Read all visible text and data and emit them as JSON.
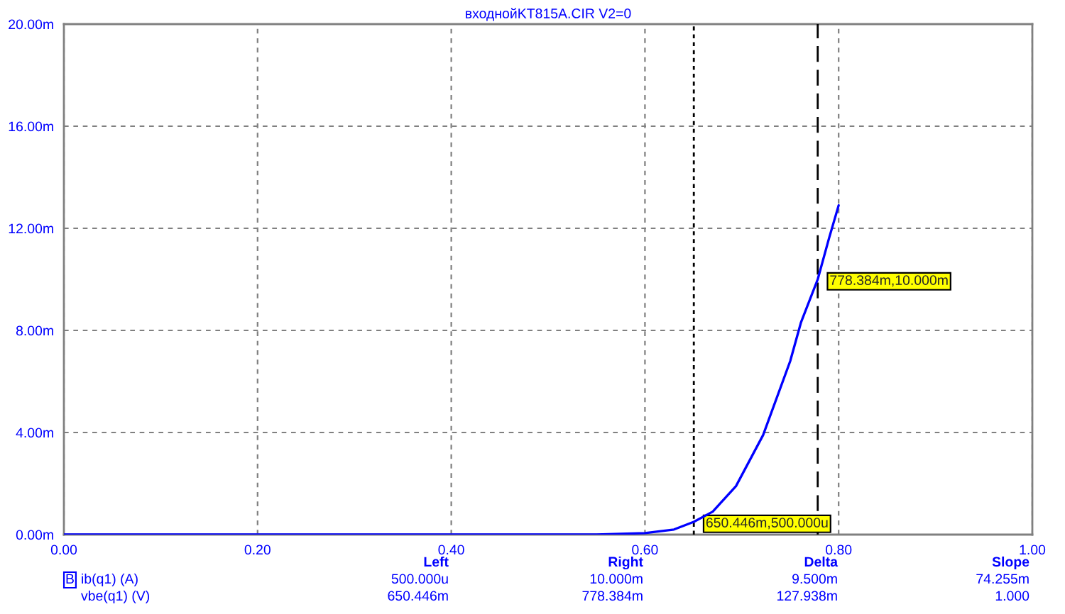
{
  "chart_data": {
    "type": "line",
    "title": "входнойKT815A.CIR V2=0",
    "xlabel": "vbe(q1) (V)",
    "x": [
      0,
      0.5,
      0.55,
      0.6,
      0.63,
      0.650446,
      0.67,
      0.694,
      0.722,
      0.75,
      0.761,
      0.778384,
      0.79,
      0.8
    ],
    "series": [
      {
        "name": "ib(q1) (A)",
        "color": "#0000ff",
        "values": [
          0,
          0,
          0,
          0.06,
          0.2,
          0.5,
          0.9,
          1.9,
          3.9,
          6.8,
          8.3,
          10,
          11.6,
          12.9
        ]
      }
    ],
    "xlim": [
      0,
      1
    ],
    "xticks": [
      {
        "value": 0,
        "label": "0.00"
      },
      {
        "value": 0.2,
        "label": "0.20"
      },
      {
        "value": 0.4,
        "label": "0.40"
      },
      {
        "value": 0.6,
        "label": "0.60"
      },
      {
        "value": 0.8,
        "label": "0.80"
      },
      {
        "value": 1,
        "label": "1.00"
      }
    ],
    "ylim": [
      0,
      20
    ],
    "yticks": [
      {
        "value": 0,
        "label": "0.00m"
      },
      {
        "value": 4,
        "label": "4.00m"
      },
      {
        "value": 8,
        "label": "8.00m"
      },
      {
        "value": 12,
        "label": "12.00m"
      },
      {
        "value": 16,
        "label": "16.00m"
      },
      {
        "value": 20,
        "label": "20.00m"
      }
    ],
    "grid": true,
    "line_style": "solid",
    "ref_lines": [
      {
        "axis": "x",
        "value": 0.650446,
        "color": "#000000",
        "line_style": "dotted"
      },
      {
        "axis": "x",
        "value": 0.778384,
        "color": "#000000",
        "line_style": "dashed"
      }
    ],
    "annotations": [
      {
        "text": "650.446m,500.000u",
        "x": 0.650446,
        "y": 0.5
      },
      {
        "text": "778.384m,10.000m",
        "x": 0.778384,
        "y": 10
      },
      "B",
      "Left",
      "Right",
      "Delta",
      "Slope",
      "500.000u",
      "10.000m",
      "9.500m",
      "74.255m",
      "650.446m",
      "778.384m",
      "127.938m",
      "1.000"
    ]
  }
}
